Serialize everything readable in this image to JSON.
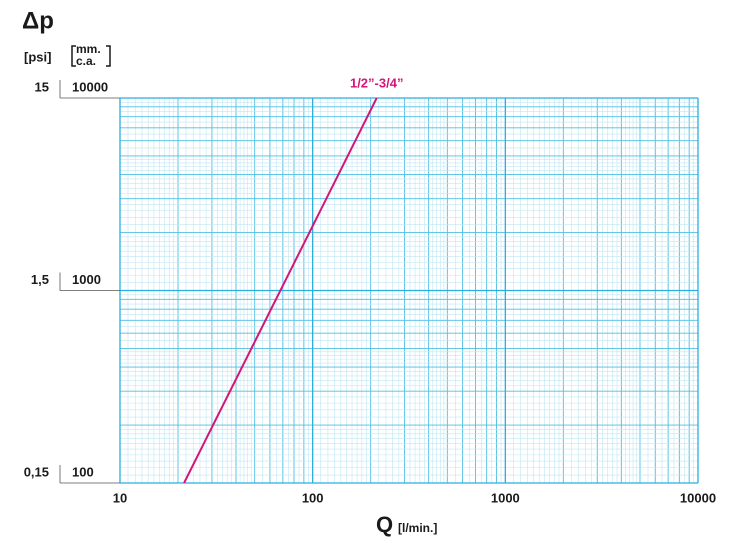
{
  "chart_data": {
    "type": "line",
    "y_label": "Δp",
    "y2_unit": "[psi]",
    "y_unit": [
      "mm.",
      "c.a."
    ],
    "x_label": "Q",
    "x_unit": "[l/min.]",
    "x_scale": "log",
    "y_scale": "log",
    "grid": true,
    "xlim": [
      10,
      10000
    ],
    "xticks": [
      10,
      100,
      1000,
      10000
    ],
    "ylim": [
      100,
      10000
    ],
    "yticks": [
      100,
      1000,
      10000
    ],
    "y2lim": [
      0.15,
      15
    ],
    "y2ticks": [
      {
        "value": 0.15,
        "label": "0,15"
      },
      {
        "value": 1.5,
        "label": "1,5"
      },
      {
        "value": 15,
        "label": "15"
      }
    ],
    "series": [
      {
        "name": "1/2”-3/4”",
        "color": "#d4157a",
        "x": [
          21.5,
          215
        ],
        "values": [
          100,
          10000
        ]
      }
    ]
  }
}
